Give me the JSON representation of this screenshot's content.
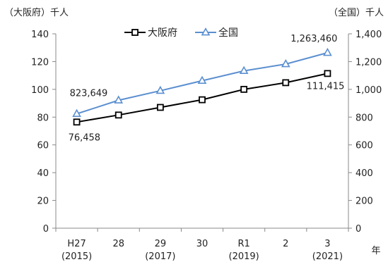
{
  "chart_data": {
    "type": "line",
    "left_unit": "（大阪府）千人",
    "right_unit": "（全国）千人",
    "x_unit": "年",
    "categories": [
      {
        "top": "H27",
        "bottom": "(2015)"
      },
      {
        "top": "28",
        "bottom": ""
      },
      {
        "top": "29",
        "bottom": "(2017)"
      },
      {
        "top": "30",
        "bottom": ""
      },
      {
        "top": "R1",
        "bottom": "(2019)"
      },
      {
        "top": "2",
        "bottom": ""
      },
      {
        "top": "3",
        "bottom": "(2021)"
      }
    ],
    "left_axis": {
      "ticks": [
        "0",
        "20",
        "40",
        "60",
        "80",
        "100",
        "120",
        "140"
      ],
      "min": 0,
      "max": 140
    },
    "right_axis": {
      "ticks": [
        "0",
        "200",
        "400",
        "600",
        "800",
        "1,000",
        "1,200",
        "1,400"
      ],
      "min": 0,
      "max": 1400
    },
    "series": [
      {
        "name": "大阪府",
        "axis": "left",
        "color": "#000000",
        "marker": "square",
        "values": [
          76.458,
          81.5,
          87,
          92.5,
          100,
          104.8,
          111.415
        ],
        "labels": {
          "first": "76,458",
          "last": "111,415"
        }
      },
      {
        "name": "全国",
        "axis": "right",
        "color": "#5b8fd0",
        "marker": "triangle",
        "values": [
          823.649,
          921,
          990,
          1062,
          1133,
          1182,
          1263.46
        ],
        "labels": {
          "first": "823,649",
          "last": "1,263,460"
        }
      }
    ],
    "legend_position": "top-center",
    "grid": false
  }
}
